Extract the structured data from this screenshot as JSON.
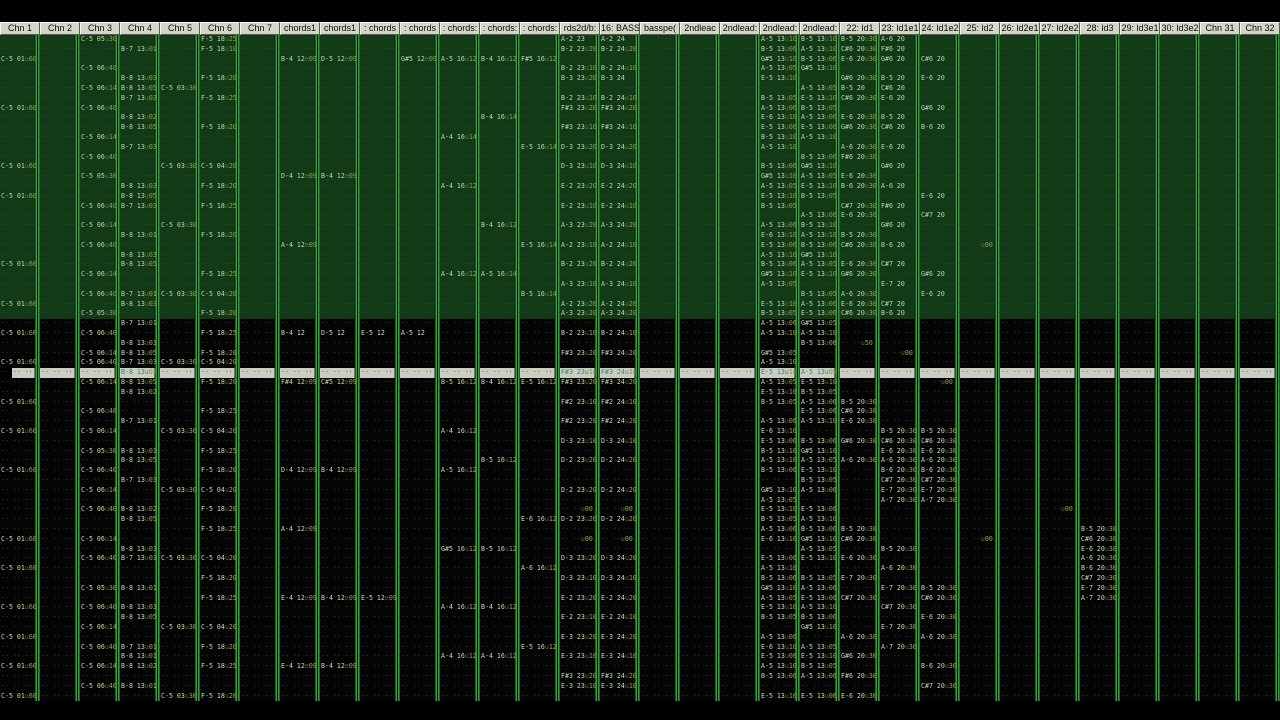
{
  "header": {
    "channels": [
      "Chn 1",
      "Chn 2",
      "Chn 3",
      "Chn 4",
      "Chn 5",
      "Chn 6",
      "Chn 7",
      "chords1",
      "chords1",
      ": chords",
      ": chords",
      ": chords:",
      ": chords:",
      ": chords:",
      "rds2d/b:",
      "16: BASS",
      "basspe(",
      "2ndleac",
      "2ndlead:",
      "2ndlead:",
      "2ndlead:",
      "22: ld1",
      "23: ld1e1",
      "24: ld1e2",
      "25: ld2",
      "26: ld2e1",
      "27: ld2e2",
      "28: ld3",
      "29: ld3e1",
      "30: ld3e2",
      "Chn 31",
      "Chn 32"
    ]
  },
  "pattern": {
    "rows": 68,
    "green_rows": 29,
    "current_row": 34,
    "row_height": 9.8,
    "channel_width": 40,
    "empty_cell": "·· ·· ·· ··",
    "notch_text": "··",
    "colors": {
      "green_region_bg": "#123a16",
      "black_region_bg": "#040404",
      "current_row_bg": "#ccccc3",
      "separator_green": "#2f9e36",
      "note_text": "#c0dab7",
      "volume_text": "#9ba750",
      "current_row_text": "#2e8f63",
      "header_face": "#d6d3cb",
      "header_text": "#0d0d0d"
    },
    "cells": {
      "0": {
        "2": "C-5 01|u60",
        "7": "C-5 01|u60",
        "13": "C-5 01|u60",
        "16": "C-5 01|u60",
        "23": "C-5 01|u60",
        "27": "C-5 01|u60",
        "30": "C-5 01|u60",
        "33": "C-5 01|u60",
        "37": "C-5 01|u60",
        "40": "C-5 01|u60",
        "44": "C-5 01|u60",
        "51": "C-5 01|u60",
        "54": "C-5 01|u60",
        "58": "C-5 01|u60",
        "61": "C-5 01|u60",
        "64": "C-5 01|u60",
        "67": "C-5 01|u60"
      },
      "2": {
        "0": "C-5 05|u30",
        "3": "C-5 06|u40",
        "5": "C-5 06|u14",
        "7": "C-5 06|u40",
        "10": "C-5 06|u14",
        "12": "C-5 06|u40",
        "14": "C-5 05|u30",
        "17": "C-5 06|u40",
        "19": "C-5 06|u14",
        "21": "C-5 06|u40",
        "24": "C-5 06|u14",
        "26": "C-5 06|u40",
        "28": "C-5 05|u30",
        "30": "C-5 06|u40",
        "32": "C-5 06|u14",
        "33": "C-5 06|u40",
        "35": "C-5 06|u14",
        "38": "C-5 06|u40",
        "40": "C-5 06|u14",
        "42": "C-5 05|u30",
        "44": "C-5 06|u40",
        "46": "C-5 06|u14",
        "48": "C-5 06|u40",
        "51": "C-5 06|u14",
        "53": "C-5 06|u40",
        "56": "C-5 05|u30",
        "58": "C-5 06|u40",
        "60": "C-5 06|u14",
        "62": "C-5 06|u40",
        "64": "C-5 06|u14",
        "66": "C-5 06|u40"
      },
      "3": {
        "1": "B-7 13|u01",
        "4": "B-8 13|u03",
        "5": "B-8 13|u05",
        "6": "B-7 13|u03",
        "8": "B-8 13|u02",
        "9": "B-8 13|u05",
        "11": "B-7 13|u03",
        "15": "B-8 13|u03",
        "16": "B-8 13|u05",
        "17": "B-7 13|u03",
        "20": "B-8 13|u01",
        "22": "B-8 13|u03",
        "23": "B-8 13|u05",
        "26": "B-7 13|u01",
        "27": "B-8 13|u03",
        "29": "B-7 13|u01",
        "31": "B-8 13|u03",
        "32": "B-8 13|u05",
        "33": "B-7 13|u03",
        "34": "B-8 13|u02",
        "35": "B-8 13|u05",
        "36": "B-8 13|u02",
        "39": "B-7 13|u01",
        "42": "B-8 13|u03",
        "43": "B-8 13|u05",
        "45": "B-7 13|u03",
        "48": "B-8 13|u02",
        "49": "B-8 13|u05",
        "52": "B-8 13|u03",
        "53": "B-7 13|u03",
        "56": "B-8 13|u01",
        "58": "B-8 13|u03",
        "59": "B-8 13|u05",
        "62": "B-7 13|u01",
        "63": "B-8 13|u01",
        "64": "B-8 13|u02",
        "66": "B-8 13|u01"
      },
      "4": {
        "5": "C-5 03|u30",
        "13": "C-5 03|u30",
        "19": "C-5 03|u30",
        "26": "C-5 03|u30",
        "33": "C-5 03|u30",
        "40": "C-5 03|u30",
        "46": "C-5 03|u30",
        "53": "C-5 03|u30",
        "60": "C-5 03|u30",
        "67": "C-5 03|u30"
      },
      "5": {
        "0": "F-5 18|u25",
        "1": "F-5 18|u10",
        "4": "F-5 18|u20",
        "6": "F-5 18|u25",
        "9": "F-5 18|u20",
        "13": "C-5 04|u20",
        "15": "F-5 18|u20",
        "17": "F-5 18|u25",
        "20": "F-5 18|u20",
        "24": "F-5 18|u25",
        "26": "C-5 04|u20",
        "28": "F-5 18|u20",
        "30": "F-5 18|u25",
        "32": "F-5 18|u20",
        "33": "C-5 04|u20",
        "35": "F-5 18|u20",
        "38": "F-5 18|u25",
        "40": "C-5 04|u20",
        "42": "F-5 18|u25",
        "44": "F-5 18|u20",
        "46": "C-5 04|u20",
        "48": "F-5 18|u20",
        "50": "F-5 18|u25",
        "53": "C-5 04|u20",
        "55": "F-5 18|u20",
        "57": "F-5 18|u25",
        "60": "C-5 04|u20",
        "62": "F-5 18|u20",
        "64": "F-5 18|u25",
        "67": "F-5 18|u20"
      },
      "7": {
        "2": "B-4 12|e09",
        "14": "D-4 12|e09",
        "21": "A-4 12|e09",
        "30": "B-4 12",
        "35": "F#4 12|e09",
        "44": "D-4 12|e09",
        "50": "A-4 12|e09",
        "57": "E-4 12|e09",
        "64": "E-4 12|e09"
      },
      "8": {
        "2": "D-5 12|e09",
        "14": "B-4 12|e09",
        "30": "D-5 12",
        "35": "C#5 12|e09",
        "44": "B-4 12|e09",
        "57": "B-4 12|e09",
        "64": "B-4 12|e09"
      },
      "9": {
        "30": "E-5 12",
        "57": "E-5 12|e09"
      },
      "10": {
        "2": "G#5 12|e09",
        "30": "A-5 12"
      },
      "11": {
        "2": "A-5 16|u12",
        "10": "A-4 16|u14",
        "15": "A-4 16|u12",
        "24": "A-4 16|u12",
        "35": "B-5 16|u12",
        "40": "A-4 16|u12",
        "44": "A-5 16|u12",
        "52": "G#5 16|u12",
        "58": "A-4 16|u12",
        "63": "A-4 16|u12"
      },
      "12": {
        "2": "B-4 16|u12",
        "8": "B-4 16|u14",
        "19": "B-4 16|u12",
        "24": "A-5 16|u14",
        "35": "B-4 16|u12",
        "43": "B-5 16|u12",
        "52": "B-5 16|u12",
        "58": "B-4 16|u12",
        "63": "A-4 16|u12"
      },
      "13": {
        "2": "F#5 16|u12",
        "11": "E-5 16|u14",
        "21": "E-5 16|u14",
        "26": "B-5 16|u14",
        "35": "E-5 16|u12",
        "49": "E-6 16|u12",
        "54": "A-6 16|u12",
        "62": "E-5 16|u12"
      },
      "14": {
        "0": "A-2 23",
        "1": "B-2 23|u20",
        "3": "B-2 23|u10",
        "4": "B-3 23|u20",
        "6": "B-2 23|u10",
        "7": "F#3 23|u20",
        "9": "F#3 23|u10",
        "11": "D-3 23|u20",
        "13": "D-3 23|u10",
        "15": "E-2 23|u20",
        "17": "E-2 23|u10",
        "19": "A-3 23|u20",
        "21": "A-2 23|u10",
        "23": "B-2 23|u20",
        "25": "A-3 23|u10",
        "27": "A-2 23|u20",
        "28": "A-3 23|u20",
        "30": "B-2 23|u10",
        "32": "F#3 23|u20",
        "34": "F#3 23|u10",
        "35": "F#3 23|u20",
        "37": "F#2 23|u10",
        "39": "F#2 23|u20",
        "41": "D-3 23|u10",
        "43": "D-2 23|u20",
        "46": "D-2 23|u20",
        "48": "·· ··|u00",
        "49": "D-2 23|u20",
        "51": "·· ··|u00",
        "53": "D-3 23|u20",
        "55": "D-3 23|u10",
        "57": "E-2 23|u20",
        "59": "E-2 23|u10",
        "61": "E-3 23|u20",
        "63": "E-3 23|u10",
        "65": "F#3 23|u20",
        "66": "E-3 23|u10"
      },
      "15": {
        "0": "A-2 24",
        "1": "B-2 24|u20",
        "3": "B-2 24|u10",
        "4": "B-3 24",
        "6": "B-2 24|u10",
        "7": "F#3 24|u20",
        "9": "F#3 24|u10",
        "11": "D-3 24|u20",
        "13": "D-3 24|u10",
        "15": "E-2 24|u20",
        "17": "E-2 24|u10",
        "19": "A-3 24|u20",
        "21": "A-2 24|u10",
        "23": "B-2 24|u20",
        "25": "A-3 24|u10",
        "27": "A-2 24|u20",
        "28": "A-3 24|u20",
        "30": "B-2 24|u10",
        "32": "F#3 24|u20",
        "34": "F#3 24|u10",
        "35": "F#3 24|u20",
        "37": "F#2 24|u10",
        "39": "F#2 24|u20",
        "41": "D-3 24|u10",
        "43": "D-2 24|u20",
        "46": "D-2 24|u20",
        "48": "·· ··|u00",
        "49": "D-2 24|u20",
        "51": "·· ··|u00",
        "53": "D-3 24|u20",
        "55": "D-3 24|u10",
        "57": "E-2 24|u20",
        "59": "E-2 24|u10",
        "61": "E-3 24|u20",
        "63": "E-3 24|u10",
        "65": "F#3 24|u20",
        "66": "E-3 24|u10"
      },
      "19": {
        "0": "A-5 13|u10",
        "1": "B-5 13|u06",
        "2": "G#5 13|u10",
        "3": "A-5 13|u05",
        "4": "E-5 13|u10",
        "6": "B-5 13|u05",
        "7": "A-5 13|u06",
        "8": "E-6 13|u10",
        "9": "E-5 13|u06",
        "10": "B-5 13|u10",
        "11": "A-5 13|u10",
        "13": "B-5 13|u06",
        "14": "G#5 13|u10",
        "15": "A-5 13|u05",
        "16": "E-5 13|u10",
        "17": "B-5 13|u05",
        "19": "A-5 13|u06",
        "20": "E-6 13|u10",
        "21": "E-5 13|u06",
        "22": "A-5 13|u10",
        "23": "B-5 13|u06",
        "24": "G#5 13|u10",
        "25": "A-5 13|u05",
        "27": "E-5 13|u10",
        "28": "B-5 13|u05",
        "29": "A-5 13|u06",
        "30": "A-5 13|u10",
        "32": "G#5 13|u05",
        "33": "A-5 13|u10",
        "34": "E-5 13|u10",
        "35": "A-5 13|u05",
        "36": "E-5 13|u10",
        "37": "B-5 13|u05",
        "39": "A-5 13|u06",
        "40": "E-6 13|u10",
        "41": "E-5 13|u06",
        "42": "B-5 13|u10",
        "43": "A-5 13|u10",
        "44": "B-5 13|u06",
        "46": "G#5 13|u10",
        "47": "A-5 13|u05",
        "48": "E-5 13|u10",
        "49": "B-5 13|u05",
        "50": "A-5 13|u06",
        "51": "E-6 13|u10",
        "53": "E-5 13|u06",
        "54": "A-5 13|u10",
        "55": "B-5 13|u06",
        "56": "G#5 13|u10",
        "57": "A-5 13|u05",
        "58": "E-5 13|u10",
        "59": "B-5 13|u05",
        "61": "A-5 13|u06",
        "62": "E-6 13|u10",
        "63": "E-5 13|u06",
        "64": "A-5 13|u10",
        "65": "B-5 13|u06",
        "67": "E-5 13|u10"
      },
      "20": {
        "0": "B-5 13|u10",
        "1": "A-5 13|u10",
        "2": "B-5 13|u06",
        "3": "G#5 13|u10",
        "5": "A-5 13|u05",
        "6": "E-5 13|u10",
        "7": "B-5 13|u05",
        "8": "A-5 13|u06",
        "9": "E-5 13|u06",
        "10": "A-5 13|u10",
        "12": "B-5 13|u06",
        "13": "G#5 13|u10",
        "14": "A-5 13|u05",
        "15": "E-5 13|u10",
        "16": "B-5 13|u05",
        "18": "A-5 13|u06",
        "19": "B-5 13|u10",
        "20": "A-5 13|u10",
        "21": "B-5 13|u06",
        "22": "G#5 13|u10",
        "23": "A-5 13|u05",
        "24": "E-5 13|u10",
        "26": "B-5 13|u05",
        "27": "A-5 13|u06",
        "28": "E-5 13|u06",
        "29": "G#5 13|u05",
        "30": "A-5 13|u10",
        "31": "B-5 13|u06",
        "34": "A-5 13|u05",
        "35": "E-5 13|u10",
        "36": "B-5 13|u05",
        "37": "A-5 13|u06",
        "38": "E-5 13|u06",
        "39": "A-5 13|u10",
        "41": "B-5 13|u06",
        "42": "G#5 13|u10",
        "43": "A-5 13|u05",
        "44": "E-5 13|u10",
        "45": "B-5 13|u05",
        "46": "A-5 13|u06",
        "48": "E-5 13|u06",
        "49": "A-5 13|u10",
        "50": "B-5 13|u06",
        "51": "G#5 13|u10",
        "52": "A-5 13|u05",
        "53": "E-5 13|u10",
        "55": "B-5 13|u05",
        "56": "A-5 13|u06",
        "57": "E-5 13|u06",
        "58": "A-5 13|u10",
        "59": "B-5 13|u06",
        "60": "G#5 13|u10",
        "62": "A-5 13|u05",
        "63": "E-5 13|u10",
        "64": "B-5 13|u05",
        "65": "A-5 13|u06",
        "67": "E-5 13|u06"
      },
      "21": {
        "0": "B-5 20|u30",
        "1": "C#6 20|u30",
        "2": "E-6 20|u30",
        "4": "G#6 20|u30",
        "5": "B-5 20",
        "6": "C#6 20|u30",
        "8": "E-6 20|u30",
        "9": "G#6 20|u30",
        "11": "A-6 20|u30",
        "12": "F#6 20|u30",
        "14": "E-6 20|u30",
        "15": "B-6 20|u30",
        "17": "C#7 20|u30",
        "18": "E-6 20|u30",
        "20": "B-5 20|u30",
        "21": "C#6 20|u30",
        "23": "E-6 20|u30",
        "24": "G#6 20|u30",
        "26": "A-6 20|u30",
        "27": "E-6 20|u30",
        "28": "C#6 20|u30",
        "31": "·· ··|u50",
        "37": "B-5 20|u30",
        "38": "C#6 20|u30",
        "39": "E-6 20|u30",
        "41": "G#6 20|u30",
        "43": "A-6 20|u30",
        "50": "B-5 20|u30",
        "51": "C#6 20|u30",
        "53": "E-6 20|u30",
        "55": "E-7 20|u30",
        "57": "C#7 20|u30",
        "61": "A-6 20|u30",
        "63": "G#6 20|u30",
        "65": "F#6 20|u30",
        "67": "E-6 20|u30"
      },
      "22": {
        "0": "A-6 20",
        "1": "F#6 20",
        "2": "G#6 20",
        "4": "B-5 20",
        "5": "C#6 20",
        "6": "E-6 20",
        "8": "B-5 20",
        "9": "C#6 20",
        "11": "E-6 20",
        "13": "G#6 20",
        "15": "A-6 20",
        "17": "F#6 20",
        "19": "G#6 20",
        "21": "B-6 20",
        "23": "C#7 20",
        "25": "E-7 20",
        "27": "C#7 20",
        "28": "B-6 20",
        "32": "·· ··|u00",
        "40": "B-5 20|u30",
        "41": "C#6 20|u30",
        "42": "E-6 20|u30",
        "43": "A-6 20|u30",
        "44": "B-6 20|u30",
        "45": "C#7 20|u30",
        "46": "E-7 20|u30",
        "47": "A-7 20|u30",
        "52": "B-5 20|u30",
        "54": "A-6 20|u30",
        "56": "E-7 20|u30",
        "58": "C#7 20|u30",
        "60": "E-7 20|u30",
        "62": "A-7 20|u30"
      },
      "23": {
        "2": "C#6 20",
        "4": "E-6 20",
        "7": "G#6 20",
        "9": "B-6 20",
        "16": "E-6 20",
        "18": "C#7 20",
        "24": "G#6 20",
        "26": "E-6 20",
        "35": "·· ··|u00",
        "40": "B-5 20|u30",
        "41": "C#6 20|u30",
        "42": "E-6 20|u30",
        "43": "A-6 20|u30",
        "44": "B-6 20|u30",
        "45": "C#7 20|u30",
        "46": "E-7 20|u30",
        "47": "A-7 20|u30",
        "56": "B-5 20|u30",
        "57": "C#6 20|u30",
        "59": "E-6 20|u30",
        "61": "A-6 20|u30",
        "64": "B-6 20|u30",
        "66": "C#7 20|u30"
      },
      "24": {
        "21": "·· ··|u00",
        "51": "·· ··|u00"
      },
      "26": {
        "48": "·· ··|u00"
      },
      "27": {
        "50": "B-5 20|u30",
        "51": "C#6 20|u30",
        "52": "E-6 20|u30",
        "53": "A-6 20|u30",
        "54": "B-6 20|u30",
        "55": "C#7 20|u30",
        "56": "E-7 20|u30",
        "57": "A-7 20|u30"
      }
    }
  }
}
